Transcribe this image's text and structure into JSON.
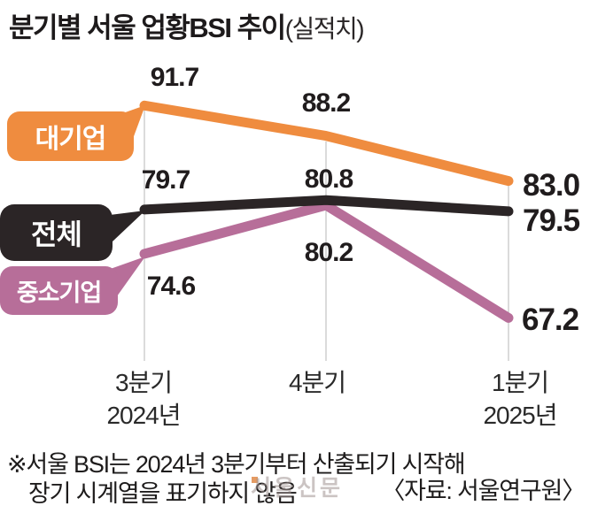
{
  "title": {
    "main": "분기별 서울 업황BSI 추이",
    "suffix": "(실적치)"
  },
  "chart_data": {
    "type": "line",
    "categories": [
      "3분기 2024년",
      "4분기",
      "1분기 2025년"
    ],
    "series": [
      {
        "name": "대기업",
        "color": "#EF8C3F",
        "values": [
          91.7,
          88.2,
          83.0
        ]
      },
      {
        "name": "전체",
        "color": "#2B2526",
        "values": [
          79.7,
          80.8,
          79.5
        ]
      },
      {
        "name": "중소기업",
        "color": "#B76E99",
        "values": [
          74.6,
          80.2,
          67.2
        ]
      }
    ],
    "ylim": [
      60,
      95
    ],
    "grid": "vertical-category-lines-only",
    "legend_position": "left speech bubbles pointing to first data points",
    "annotation": "values shown as data labels; last-point labels emphasized bold"
  },
  "value_labels": {
    "large": [
      "91.7",
      "88.2",
      "83.0"
    ],
    "total": [
      "79.7",
      "80.8",
      "79.5"
    ],
    "sme": [
      "74.6",
      "80.2",
      "67.2"
    ]
  },
  "x_axis": {
    "col1_line1": "3분기",
    "col1_line2": "2024년",
    "col2_line1": "4분기",
    "col3_line1": "1분기",
    "col3_line2": "2025년"
  },
  "footnote": {
    "line1": "※서울 BSI는 2024년 3분기부터 산출되기 시작해",
    "line2": "장기 시계열을 표기하지 않음",
    "source": "〈자료: 서울연구원〉"
  },
  "watermark": "서울신문"
}
